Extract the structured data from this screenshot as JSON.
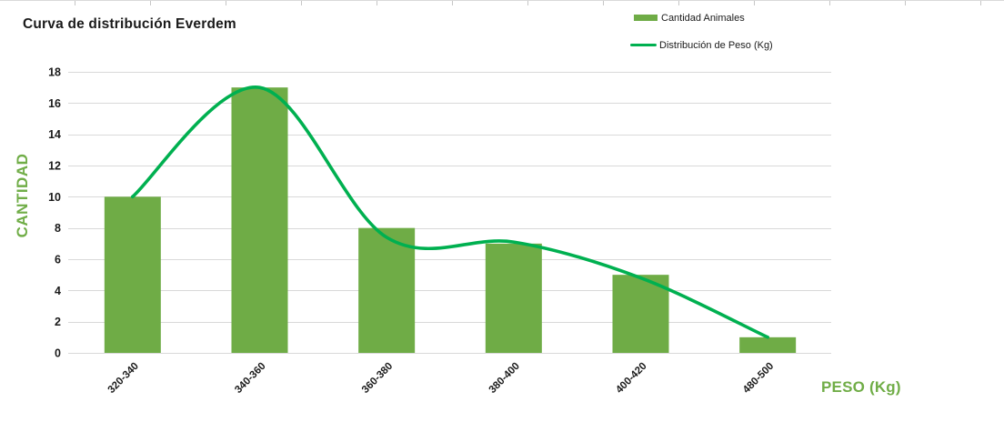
{
  "title": "Curva de distribución Everdem",
  "legend": {
    "items": [
      {
        "label": "Cantidad Animales",
        "marker": "bar-swatch",
        "color": "#6FAC46"
      },
      {
        "label": "Distribución de Peso (Kg)",
        "marker": "line-swatch",
        "color": "#00B050"
      }
    ]
  },
  "axis_titles": {
    "y": "CANTIDAD",
    "x": "PESO (Kg)"
  },
  "colors": {
    "bar": "#6FAC46",
    "line": "#00B050",
    "axis_title": "#70AD47",
    "grid": "#D9D9D9",
    "tick_text": "#1A1A1A"
  },
  "chart_data": {
    "type": "bar",
    "combo_with_line": true,
    "title": "Curva de distribución Everdem",
    "categories": [
      "320-340",
      "340-360",
      "360-380",
      "380-400",
      "400-420",
      "480-500"
    ],
    "series": [
      {
        "name": "Cantidad Animales",
        "type": "bar",
        "color": "#6FAC46",
        "values": [
          10,
          17,
          8,
          7,
          5,
          1
        ]
      },
      {
        "name": "Distribución de Peso (Kg)",
        "type": "line",
        "smoothed": true,
        "color": "#00B050",
        "values": [
          10,
          17,
          7.4,
          7.1,
          4.8,
          1
        ]
      }
    ],
    "xlabel": "PESO (Kg)",
    "ylabel": "CANTIDAD",
    "ylim": [
      0,
      18
    ],
    "y_tick_step": 2,
    "y_ticks": [
      0,
      2,
      4,
      6,
      8,
      10,
      12,
      14,
      16,
      18
    ],
    "grid": true,
    "legend_position": "top-right"
  }
}
